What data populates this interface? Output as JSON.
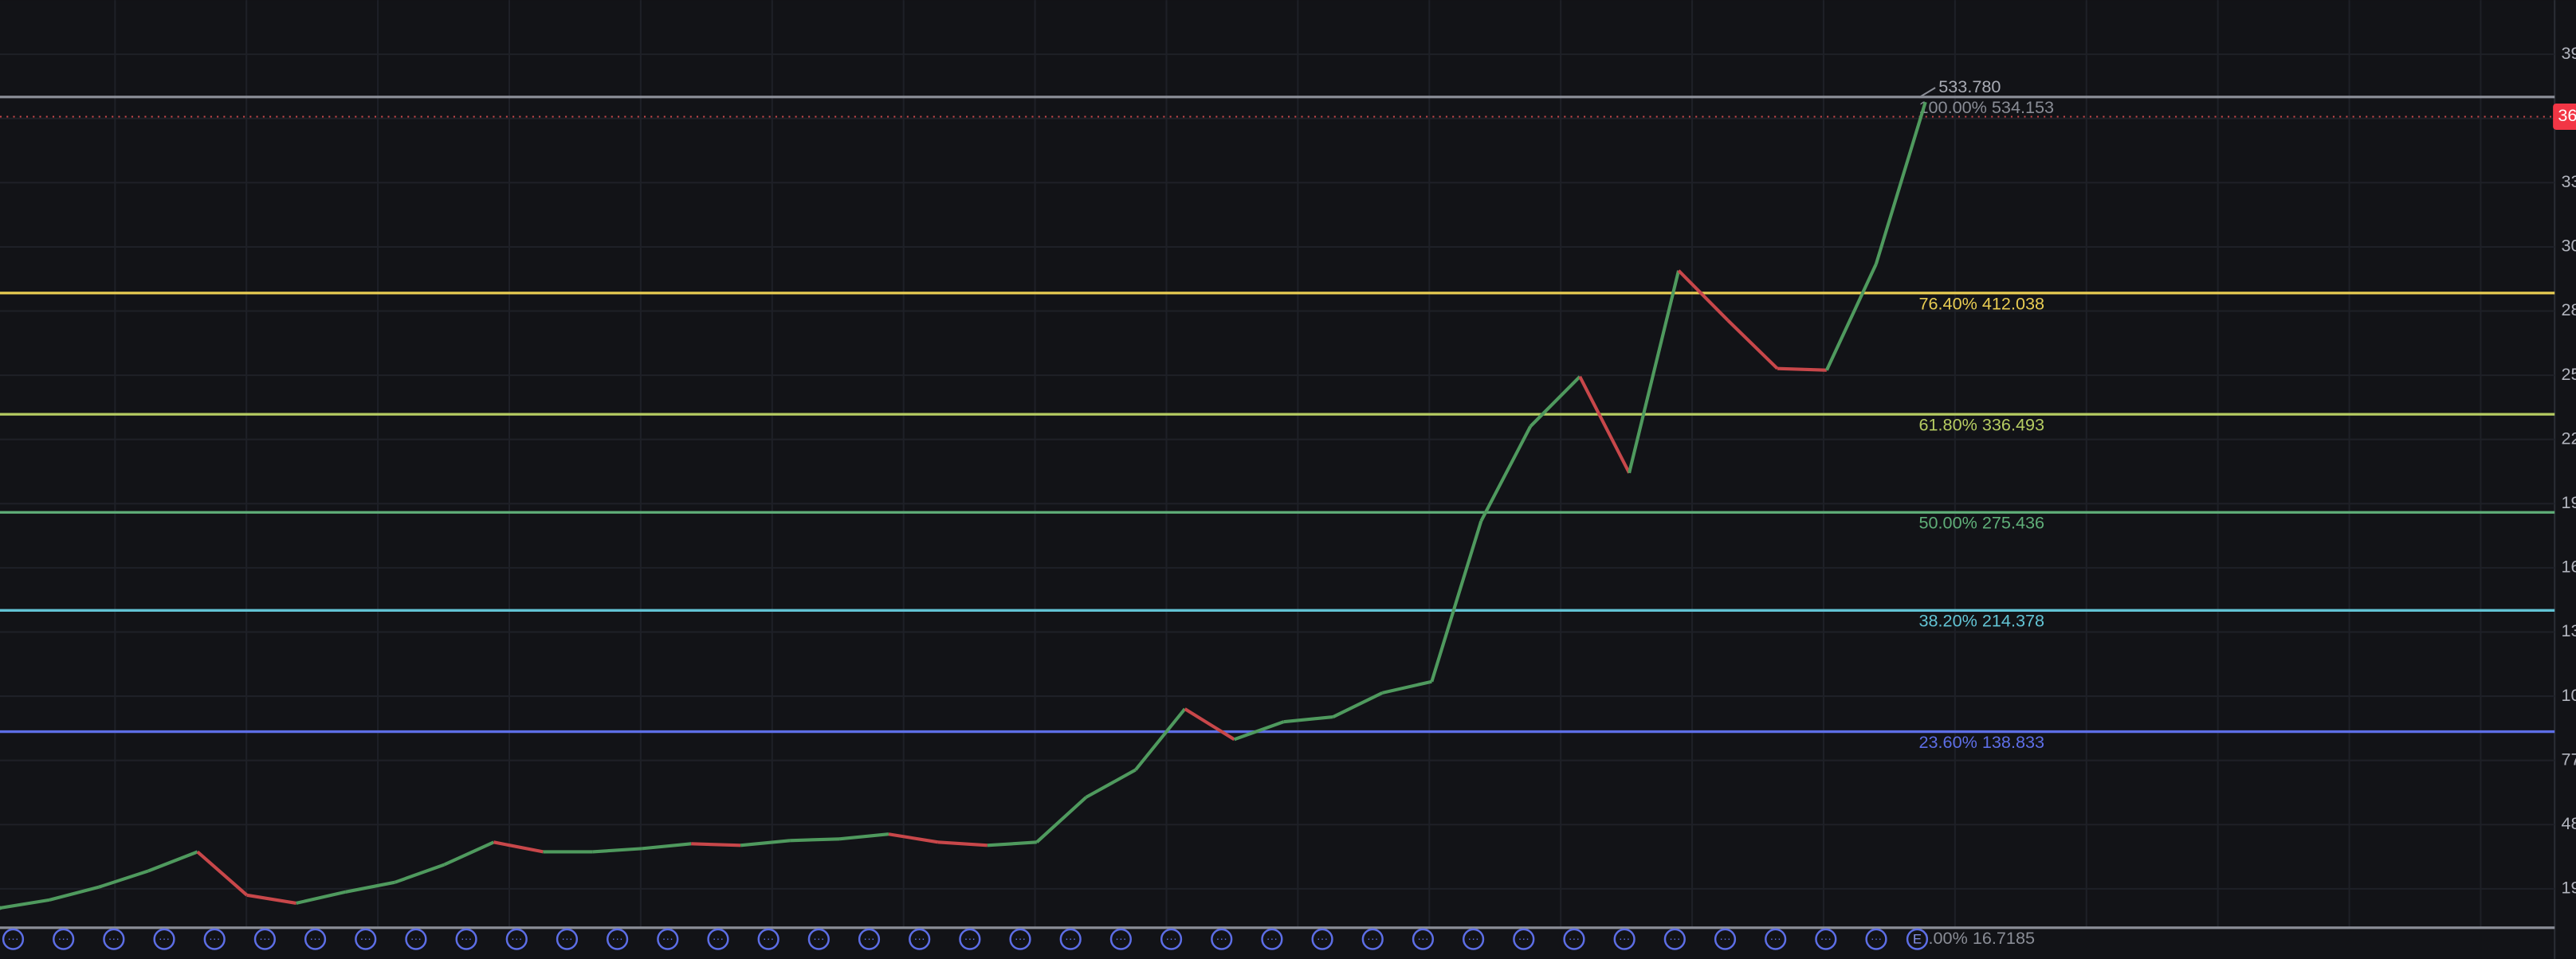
{
  "chart_data": {
    "type": "line",
    "up_color": "#4f9a5e",
    "down_color": "#c8474a",
    "values": [
      29,
      34,
      42,
      52,
      64,
      37,
      32,
      39,
      45,
      56,
      70,
      64,
      64,
      66,
      69,
      68,
      71,
      72,
      75,
      70,
      68,
      70,
      98,
      115,
      153,
      134,
      145,
      148,
      163,
      170,
      270,
      329,
      360,
      300,
      426,
      395,
      365,
      364,
      430,
      531
    ],
    "levels": [
      {
        "ratio": {
          "value": 100,
          "label": "100.00%"
        },
        "price": 534.153,
        "color": "#8a8d96"
      },
      {
        "ratio": {
          "value": 76.4,
          "label": "76.40%"
        },
        "price": 412.038,
        "color": "#e8cc52"
      },
      {
        "ratio": {
          "value": 61.8,
          "label": "61.80%"
        },
        "price": 336.493,
        "color": "#b6cc62"
      },
      {
        "ratio": {
          "value": 50,
          "label": "50.00%"
        },
        "price": 275.436,
        "color": "#5fae78"
      },
      {
        "ratio": {
          "value": 38.2,
          "label": "38.20%"
        },
        "price": 214.378,
        "color": "#62c3d4"
      },
      {
        "ratio": {
          "value": 23.6,
          "label": "23.60%"
        },
        "price": 138.833,
        "color": "#5d6ee6"
      },
      {
        "ratio": {
          "value": 0,
          "label": "0.00%"
        },
        "price": 16.7185,
        "color": "#8a8d96"
      }
    ],
    "high": {
      "value": 533.78,
      "label": "533.780"
    },
    "axis_labels": [
      "39",
      "33",
      "30",
      "28",
      "25",
      "22",
      "19",
      "16",
      "13",
      "10",
      "77",
      "48",
      "19"
    ],
    "price_tag": "36",
    "event_marker": "E"
  }
}
